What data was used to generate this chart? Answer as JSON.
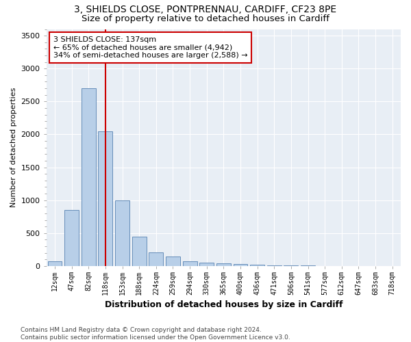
{
  "title_line1": "3, SHIELDS CLOSE, PONTPRENNAU, CARDIFF, CF23 8PE",
  "title_line2": "Size of property relative to detached houses in Cardiff",
  "xlabel": "Distribution of detached houses by size in Cardiff",
  "ylabel": "Number of detached properties",
  "categories": [
    "12sqm",
    "47sqm",
    "82sqm",
    "118sqm",
    "153sqm",
    "188sqm",
    "224sqm",
    "259sqm",
    "294sqm",
    "330sqm",
    "365sqm",
    "400sqm",
    "436sqm",
    "471sqm",
    "506sqm",
    "541sqm",
    "577sqm",
    "612sqm",
    "647sqm",
    "683sqm",
    "718sqm"
  ],
  "bar_values": [
    75,
    850,
    2700,
    2050,
    1000,
    450,
    210,
    140,
    75,
    55,
    45,
    30,
    20,
    10,
    8,
    5,
    3,
    2,
    1,
    1,
    1
  ],
  "bar_color": "#b8cfe8",
  "bar_edge_color": "#5580b0",
  "bar_width": 0.85,
  "vline_color": "#cc0000",
  "vline_x": 3.0,
  "annotation_text": "3 SHIELDS CLOSE: 137sqm\n← 65% of detached houses are smaller (4,942)\n34% of semi-detached houses are larger (2,588) →",
  "annotation_box_color": "#ffffff",
  "annotation_box_edge": "#cc0000",
  "ylim": [
    0,
    3600
  ],
  "yticks": [
    0,
    500,
    1000,
    1500,
    2000,
    2500,
    3000,
    3500
  ],
  "footnote": "Contains HM Land Registry data © Crown copyright and database right 2024.\nContains public sector information licensed under the Open Government Licence v3.0.",
  "plot_bg_color": "#e8eef5",
  "fig_bg_color": "#ffffff",
  "grid_color": "#ffffff",
  "title_fontsize": 10,
  "subtitle_fontsize": 9.5
}
